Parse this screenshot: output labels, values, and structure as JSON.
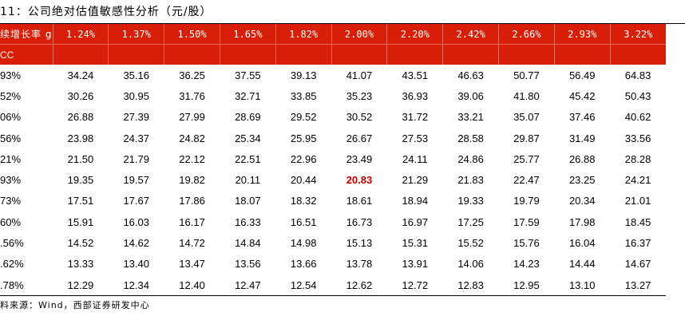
{
  "title": "11：公司绝对估值敏感性分析（元/股）",
  "header": {
    "growth_label": "续增长率 g",
    "wacc_label": "CC",
    "growth_rates": [
      "1.24%",
      "1.37%",
      "1.50%",
      "1.65%",
      "1.82%",
      "2.00%",
      "2.20%",
      "2.42%",
      "2.66%",
      "2.93%",
      "3.22%"
    ]
  },
  "rows": [
    {
      "wacc": "93%",
      "values": [
        "34.24",
        "35.16",
        "36.25",
        "37.55",
        "39.13",
        "41.07",
        "43.51",
        "46.63",
        "50.77",
        "56.49",
        "64.83"
      ]
    },
    {
      "wacc": "52%",
      "values": [
        "30.26",
        "30.95",
        "31.76",
        "32.71",
        "33.85",
        "35.23",
        "36.93",
        "39.06",
        "41.80",
        "45.42",
        "50.43"
      ]
    },
    {
      "wacc": "06%",
      "values": [
        "26.88",
        "27.39",
        "27.99",
        "28.69",
        "29.52",
        "30.52",
        "31.72",
        "33.21",
        "35.07",
        "37.46",
        "40.62"
      ]
    },
    {
      "wacc": "56%",
      "values": [
        "23.98",
        "24.37",
        "24.82",
        "25.34",
        "25.95",
        "26.67",
        "27.53",
        "28.58",
        "29.87",
        "31.49",
        "33.56"
      ]
    },
    {
      "wacc": "21%",
      "values": [
        "21.50",
        "21.79",
        "22.12",
        "22.51",
        "22.96",
        "23.49",
        "24.11",
        "24.86",
        "25.77",
        "26.88",
        "28.28"
      ]
    },
    {
      "wacc": "93%",
      "values": [
        "19.35",
        "19.57",
        "19.82",
        "20.11",
        "20.44",
        "20.83",
        "21.29",
        "21.83",
        "22.47",
        "23.25",
        "24.21"
      ]
    },
    {
      "wacc": "73%",
      "values": [
        "17.51",
        "17.67",
        "17.86",
        "18.07",
        "18.32",
        "18.61",
        "18.94",
        "19.33",
        "19.79",
        "20.34",
        "21.01"
      ]
    },
    {
      "wacc": "60%",
      "values": [
        "15.91",
        "16.03",
        "16.17",
        "16.33",
        "16.51",
        "16.73",
        "16.97",
        "17.25",
        "17.59",
        "17.98",
        "18.45"
      ]
    },
    {
      "wacc": ".56%",
      "values": [
        "14.52",
        "14.62",
        "14.72",
        "14.84",
        "14.98",
        "15.13",
        "15.31",
        "15.52",
        "15.76",
        "16.04",
        "16.37"
      ]
    },
    {
      "wacc": ".62%",
      "values": [
        "13.33",
        "13.40",
        "13.47",
        "13.56",
        "13.66",
        "13.78",
        "13.91",
        "14.06",
        "14.23",
        "14.44",
        "14.67"
      ]
    },
    {
      "wacc": ".78%",
      "values": [
        "12.29",
        "12.34",
        "12.40",
        "12.47",
        "12.54",
        "12.62",
        "12.72",
        "12.83",
        "12.95",
        "13.10",
        "13.27"
      ]
    }
  ],
  "highlight": {
    "row": 5,
    "col": 5,
    "color": "#c00000"
  },
  "colors": {
    "header_bg": "#d81e06",
    "header_text": "#ffffff",
    "highlight": "#c00000"
  },
  "source": "料来源：Wind，西部证券研发中心"
}
